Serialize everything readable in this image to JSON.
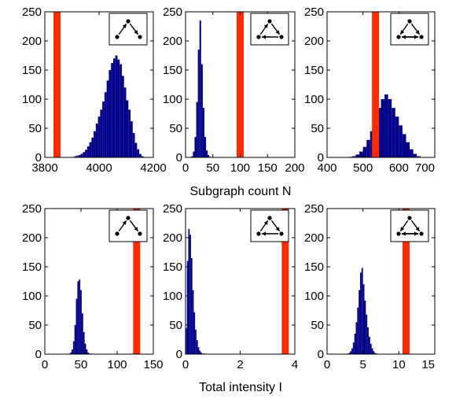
{
  "figure_labels": {
    "row1_xlabel": "Subgraph count N",
    "row2_xlabel": "Total intensity I"
  },
  "colors": {
    "histogram": "#00008B",
    "observed": "#FF2A00"
  },
  "chart_data": [
    {
      "type": "bar",
      "row": 1,
      "col": 1,
      "motif": "feed-forward-loop",
      "xlim": [
        3800,
        4200
      ],
      "ylim": [
        0,
        250
      ],
      "xticks": [
        "3800",
        "4000",
        "4200"
      ],
      "yticks": [
        "0",
        "50",
        "100",
        "150",
        "200",
        "250"
      ],
      "observed": 3845,
      "bin_width": 8,
      "x": [
        3912,
        3920,
        3928,
        3936,
        3944,
        3952,
        3960,
        3968,
        3976,
        3984,
        3992,
        4000,
        4008,
        4016,
        4024,
        4032,
        4040,
        4048,
        4056,
        4064,
        4072,
        4080,
        4088,
        4096,
        4104,
        4112,
        4120,
        4128,
        4136,
        4144,
        4152,
        4160
      ],
      "values": [
        2,
        3,
        4,
        6,
        9,
        13,
        19,
        26,
        34,
        45,
        58,
        70,
        82,
        96,
        112,
        132,
        150,
        162,
        170,
        175,
        168,
        160,
        140,
        120,
        98,
        82,
        62,
        42,
        25,
        14,
        6,
        2
      ]
    },
    {
      "type": "bar",
      "row": 1,
      "col": 2,
      "motif": "cycle",
      "xlim": [
        0,
        200
      ],
      "ylim": [
        0,
        250
      ],
      "xticks": [
        "0",
        "50",
        "100",
        "150",
        "200"
      ],
      "yticks": [
        "0",
        "50",
        "100",
        "150",
        "200",
        "250"
      ],
      "observed": 100,
      "bin_width": 3,
      "x": [
        12,
        15,
        18,
        21,
        24,
        27,
        30,
        33,
        36,
        39,
        42,
        45
      ],
      "values": [
        2,
        10,
        35,
        95,
        185,
        235,
        160,
        85,
        35,
        12,
        4,
        1
      ]
    },
    {
      "type": "bar",
      "row": 1,
      "col": 3,
      "motif": "bidirectional-triad",
      "xlim": [
        400,
        700
      ],
      "ylim": [
        0,
        250
      ],
      "xticks": [
        "400",
        "500",
        "600",
        "700"
      ],
      "yticks": [
        "0",
        "50",
        "100",
        "150",
        "200",
        "250"
      ],
      "observed": 535,
      "bin_width": 10,
      "x": [
        465,
        475,
        485,
        495,
        505,
        515,
        525,
        535,
        545,
        555,
        565,
        575,
        585,
        595,
        605,
        615,
        625,
        635,
        645,
        655
      ],
      "values": [
        1,
        2,
        5,
        10,
        18,
        30,
        45,
        62,
        85,
        100,
        108,
        100,
        85,
        70,
        55,
        40,
        26,
        14,
        6,
        2
      ]
    },
    {
      "type": "bar",
      "row": 2,
      "col": 1,
      "motif": "feed-forward-loop",
      "xlim": [
        0,
        150
      ],
      "ylim": [
        0,
        250
      ],
      "xticks": [
        "0",
        "50",
        "100",
        "150"
      ],
      "yticks": [
        "0",
        "50",
        "100",
        "150",
        "200",
        "250"
      ],
      "observed": 127,
      "bin_width": 2,
      "x": [
        34,
        36,
        38,
        40,
        42,
        44,
        46,
        48,
        50,
        52,
        54,
        56,
        58,
        60,
        62,
        64
      ],
      "values": [
        1,
        3,
        8,
        22,
        50,
        95,
        125,
        128,
        110,
        70,
        38,
        18,
        8,
        3,
        1,
        1
      ]
    },
    {
      "type": "bar",
      "row": 2,
      "col": 2,
      "motif": "cycle",
      "xlim": [
        0,
        4
      ],
      "ylim": [
        0,
        250
      ],
      "xticks": [
        "0",
        "2",
        "4"
      ],
      "yticks": [
        "0",
        "50",
        "100",
        "150",
        "200",
        "250"
      ],
      "observed": 3.65,
      "bin_width": 0.05,
      "x": [
        0.025,
        0.075,
        0.125,
        0.175,
        0.225,
        0.275,
        0.325,
        0.375,
        0.425,
        0.475,
        0.525,
        0.575,
        0.625,
        0.675
      ],
      "values": [
        45,
        160,
        215,
        205,
        165,
        110,
        72,
        42,
        24,
        12,
        6,
        3,
        1,
        1
      ]
    },
    {
      "type": "bar",
      "row": 2,
      "col": 3,
      "motif": "bidirectional-triad",
      "xlim": [
        0,
        15
      ],
      "ylim": [
        0,
        250
      ],
      "xticks": [
        "0",
        "5",
        "10",
        "15"
      ],
      "yticks": [
        "0",
        "50",
        "100",
        "150",
        "200",
        "250"
      ],
      "observed": 11,
      "bin_width": 0.2,
      "x": [
        2.9,
        3.1,
        3.3,
        3.5,
        3.7,
        3.9,
        4.1,
        4.3,
        4.5,
        4.7,
        4.9,
        5.1,
        5.3,
        5.5,
        5.7,
        5.9,
        6.1,
        6.3,
        6.5,
        6.7,
        6.9
      ],
      "values": [
        1,
        2,
        5,
        10,
        20,
        35,
        55,
        80,
        110,
        140,
        148,
        120,
        92,
        68,
        46,
        30,
        18,
        10,
        5,
        2,
        1
      ]
    }
  ]
}
